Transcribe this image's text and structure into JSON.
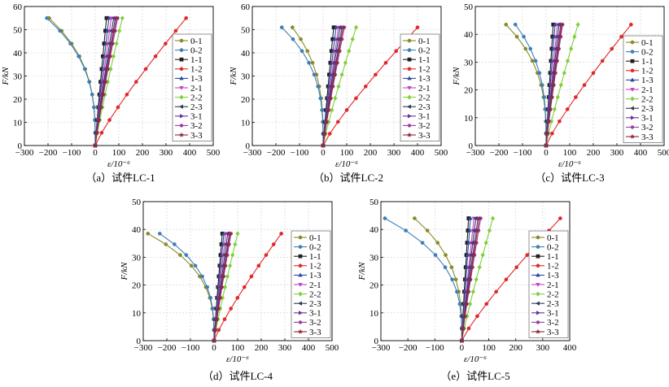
{
  "legend_entries": [
    "0-1",
    "0-2",
    "1-1",
    "1-2",
    "1-3",
    "2-1",
    "2-2",
    "2-3",
    "3-1",
    "3-2",
    "3-3"
  ],
  "series_colors": [
    "#8a8a2a",
    "#3f7fb5",
    "#1f1f1f",
    "#e0282a",
    "#2b4aa0",
    "#c245c2",
    "#7ed03a",
    "#2c3e52",
    "#6b2fa0",
    "#9c3a9c",
    "#8b2a3a"
  ],
  "marker_shapes": [
    "circle",
    "circle",
    "square",
    "circle",
    "triangle",
    "triangle-down",
    "diamond",
    "triangle-left",
    "triangle-right",
    "hexagon",
    "star"
  ],
  "chart_data": [
    {
      "type": "line",
      "caption": "（a）试件LC-1",
      "xlabel": "ε/10⁻⁶",
      "ylabel": "F/kN",
      "xlim": [
        -300,
        500
      ],
      "ylim": [
        0,
        60
      ],
      "xticks": [
        -300,
        -200,
        -100,
        0,
        100,
        200,
        300,
        400,
        500
      ],
      "xtick_labels": [
        "−300",
        "−200",
        "−100",
        "0",
        "100",
        "200",
        "300",
        "400",
        "500"
      ],
      "yticks": [
        0,
        10,
        20,
        30,
        40,
        50,
        60
      ],
      "ytick_labels": [
        "0",
        "10",
        "20",
        "30",
        "40",
        "50",
        "60"
      ],
      "load_max": 55,
      "series": [
        {
          "name": "0-1",
          "final": -195,
          "exp": 3.0
        },
        {
          "name": "0-2",
          "final": -205,
          "exp": 3.0
        },
        {
          "name": "1-1",
          "final": 48,
          "exp": 1.1
        },
        {
          "name": "1-2",
          "final": 385,
          "exp": 1.15
        },
        {
          "name": "1-3",
          "final": 58,
          "exp": 1.1
        },
        {
          "name": "2-1",
          "final": 68,
          "exp": 1.1
        },
        {
          "name": "2-2",
          "final": 115,
          "exp": 1.1
        },
        {
          "name": "2-3",
          "final": 78,
          "exp": 1.1
        },
        {
          "name": "3-1",
          "final": 85,
          "exp": 1.1
        },
        {
          "name": "3-2",
          "final": 95,
          "exp": 1.1
        },
        {
          "name": "3-3",
          "final": 90,
          "exp": 1.1
        }
      ]
    },
    {
      "type": "line",
      "caption": "（b）试件LC-2",
      "xlabel": "ε/10⁻⁶",
      "ylabel": "F/kN",
      "xlim": [
        -300,
        500
      ],
      "ylim": [
        0,
        60
      ],
      "xticks": [
        -300,
        -200,
        -100,
        0,
        100,
        200,
        300,
        400,
        500
      ],
      "xtick_labels": [
        "−300",
        "−200",
        "−100",
        "0",
        "100",
        "200",
        "300",
        "400",
        "500"
      ],
      "yticks": [
        0,
        10,
        20,
        30,
        40,
        50,
        60
      ],
      "ytick_labels": [
        "0",
        "10",
        "20",
        "30",
        "40",
        "50",
        "60"
      ],
      "load_max": 51,
      "series": [
        {
          "name": "0-1",
          "final": -130,
          "exp": 3.0
        },
        {
          "name": "0-2",
          "final": -175,
          "exp": 3.0
        },
        {
          "name": "1-1",
          "final": 45,
          "exp": 1.1
        },
        {
          "name": "1-2",
          "final": 400,
          "exp": 1.15
        },
        {
          "name": "1-3",
          "final": 55,
          "exp": 1.1
        },
        {
          "name": "2-1",
          "final": 65,
          "exp": 1.1
        },
        {
          "name": "2-2",
          "final": 140,
          "exp": 1.1
        },
        {
          "name": "2-3",
          "final": 72,
          "exp": 1.1
        },
        {
          "name": "3-1",
          "final": 80,
          "exp": 1.1
        },
        {
          "name": "3-2",
          "final": 90,
          "exp": 1.1
        },
        {
          "name": "3-3",
          "final": 85,
          "exp": 1.1
        }
      ]
    },
    {
      "type": "line",
      "caption": "（c）试件LC-3",
      "xlabel": "ε/10⁻⁶",
      "ylabel": "F/kN",
      "xlim": [
        -300,
        500
      ],
      "ylim": [
        0,
        50
      ],
      "xticks": [
        -300,
        -200,
        -100,
        0,
        100,
        200,
        300,
        400,
        500
      ],
      "xtick_labels": [
        "−300",
        "−200",
        "−100",
        "0",
        "100",
        "200",
        "300",
        "400",
        "500"
      ],
      "yticks": [
        0,
        10,
        20,
        30,
        40,
        50
      ],
      "ytick_labels": [
        "0",
        "10",
        "20",
        "30",
        "40",
        "50"
      ],
      "load_max": 43.5,
      "series": [
        {
          "name": "0-1",
          "final": -170,
          "exp": 3.0
        },
        {
          "name": "0-2",
          "final": -130,
          "exp": 3.0
        },
        {
          "name": "1-1",
          "final": 30,
          "exp": 1.1
        },
        {
          "name": "1-2",
          "final": 360,
          "exp": 1.15
        },
        {
          "name": "1-3",
          "final": 38,
          "exp": 1.1
        },
        {
          "name": "2-1",
          "final": 48,
          "exp": 1.1
        },
        {
          "name": "2-2",
          "final": 135,
          "exp": 1.1
        },
        {
          "name": "2-3",
          "final": 55,
          "exp": 1.1
        },
        {
          "name": "3-1",
          "final": 62,
          "exp": 1.1
        },
        {
          "name": "3-2",
          "final": 70,
          "exp": 1.1
        },
        {
          "name": "3-3",
          "final": 66,
          "exp": 1.1
        }
      ]
    },
    {
      "type": "line",
      "caption": "（d）试件LC-4",
      "xlabel": "ε/10⁻⁶",
      "ylabel": "F/kN",
      "xlim": [
        -300,
        500
      ],
      "ylim": [
        0,
        50
      ],
      "xticks": [
        -300,
        -200,
        -100,
        0,
        100,
        200,
        300,
        400,
        500
      ],
      "xtick_labels": [
        "−300",
        "−200",
        "−100",
        "0",
        "100",
        "200",
        "300",
        "400",
        "500"
      ],
      "yticks": [
        0,
        10,
        20,
        30,
        40,
        50
      ],
      "ytick_labels": [
        "0",
        "10",
        "20",
        "30",
        "40",
        "50"
      ],
      "load_max": 38.5,
      "series": [
        {
          "name": "0-1",
          "final": -280,
          "exp": 3.0
        },
        {
          "name": "0-2",
          "final": -230,
          "exp": 3.0
        },
        {
          "name": "1-1",
          "final": 35,
          "exp": 1.1
        },
        {
          "name": "1-2",
          "final": 285,
          "exp": 1.15
        },
        {
          "name": "1-3",
          "final": 42,
          "exp": 1.1
        },
        {
          "name": "2-1",
          "final": 50,
          "exp": 1.1
        },
        {
          "name": "2-2",
          "final": 100,
          "exp": 1.1
        },
        {
          "name": "2-3",
          "final": 58,
          "exp": 1.1
        },
        {
          "name": "3-1",
          "final": 65,
          "exp": 1.1
        },
        {
          "name": "3-2",
          "final": 72,
          "exp": 1.1
        },
        {
          "name": "3-3",
          "final": 68,
          "exp": 1.1
        }
      ]
    },
    {
      "type": "line",
      "caption": "（e）试件LC-5",
      "xlabel": "ε/10⁻⁶",
      "ylabel": "F/kN",
      "xlim": [
        -300,
        400
      ],
      "ylim": [
        0,
        50
      ],
      "xticks": [
        -300,
        -200,
        -100,
        0,
        100,
        200,
        300,
        400
      ],
      "xtick_labels": [
        "−300",
        "−200",
        "−100",
        "0",
        "100",
        "200",
        "300",
        "400"
      ],
      "yticks": [
        0,
        10,
        20,
        30,
        40,
        50
      ],
      "ytick_labels": [
        "0",
        "10",
        "20",
        "30",
        "40",
        "50"
      ],
      "load_max": 44,
      "series": [
        {
          "name": "0-1",
          "final": -175,
          "exp": 3.0
        },
        {
          "name": "0-2",
          "final": -285,
          "exp": 3.0
        },
        {
          "name": "1-1",
          "final": 25,
          "exp": 1.1
        },
        {
          "name": "1-2",
          "final": 365,
          "exp": 1.15
        },
        {
          "name": "1-3",
          "final": 32,
          "exp": 1.1
        },
        {
          "name": "2-1",
          "final": 45,
          "exp": 1.1
        },
        {
          "name": "2-2",
          "final": 115,
          "exp": 1.1
        },
        {
          "name": "2-3",
          "final": 52,
          "exp": 1.1
        },
        {
          "name": "3-1",
          "final": 60,
          "exp": 1.1
        },
        {
          "name": "3-2",
          "final": 70,
          "exp": 1.1
        },
        {
          "name": "3-3",
          "final": 65,
          "exp": 1.1
        }
      ]
    }
  ]
}
